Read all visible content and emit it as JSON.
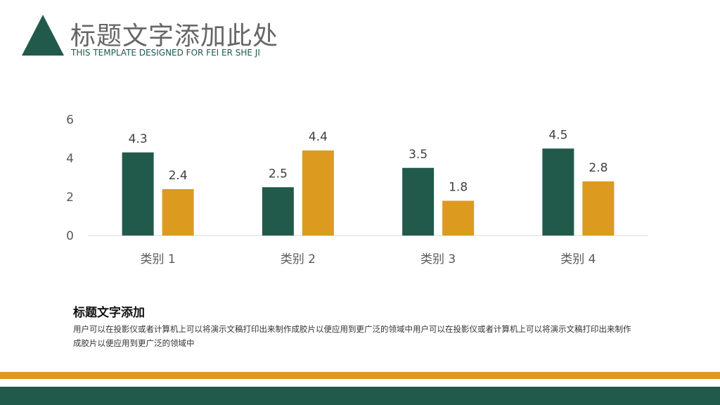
{
  "header": {
    "title": "标题文字添加此处",
    "subtitle": "THIS TEMPLATE DESIGNED FOR FEI ER SHE JI"
  },
  "colors": {
    "primary": "#215A4B",
    "accent": "#DC9A1F",
    "axis": "#D9D9D9",
    "label": "#595959"
  },
  "chart_data": {
    "type": "bar",
    "categories": [
      "类别 1",
      "类别 2",
      "类别 3",
      "类别 4"
    ],
    "series": [
      {
        "values": [
          4.3,
          2.5,
          3.5,
          4.5
        ],
        "color": "#215A4B"
      },
      {
        "values": [
          2.4,
          4.4,
          1.8,
          2.8
        ],
        "color": "#DC9A1F"
      }
    ],
    "yticks": [
      0,
      2,
      4,
      6
    ],
    "ylim": [
      0,
      6
    ],
    "grid": false,
    "legend": "none",
    "data_labels": true
  },
  "section": {
    "heading": "标题文字添加",
    "body": "用户可以在投影仪或者计算机上可以将演示文稿打印出来制作成胶片以便应用到更广泛的领域中用户可以在投影仪或者计算机上可以将演示文稿打印出来制作成胶片以便应用到更广泛的领域中"
  }
}
